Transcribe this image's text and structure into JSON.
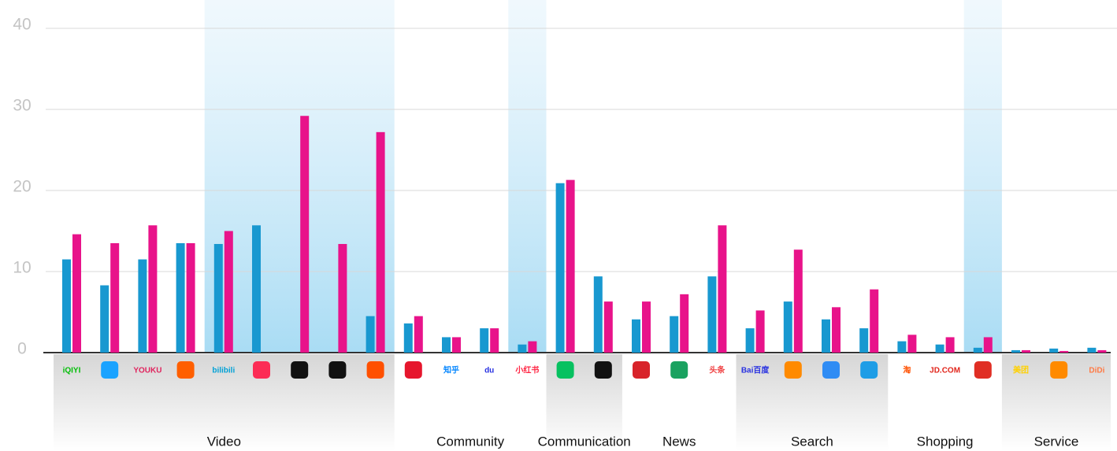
{
  "chart_data": {
    "type": "bar",
    "categories": [
      "iQIYI",
      null,
      "YOUKU",
      null,
      "bilibili",
      null,
      null,
      null,
      null,
      null,
      "知乎",
      "du",
      "小红书",
      null,
      null,
      null,
      null,
      "头条",
      "Bai百度",
      null,
      null,
      null,
      "淘",
      "JD.COM",
      null,
      "美团",
      null,
      "DiDi"
    ],
    "series": [
      {
        "color": "#1898d0",
        "values": [
          11.5,
          8.3,
          11.5,
          13.5,
          13.4,
          15.7,
          null,
          null,
          4.5,
          3.6,
          1.9,
          3,
          1,
          20.9,
          9.4,
          4.1,
          4.5,
          9.4,
          3,
          6.3,
          4.1,
          3,
          1.4,
          1,
          0.6,
          0.3,
          0.5,
          0.6
        ]
      },
      {
        "color": "#e8138a",
        "values": [
          14.6,
          13.5,
          15.7,
          13.5,
          15,
          null,
          29.2,
          13.4,
          27.2,
          4.5,
          1.9,
          3,
          1.4,
          21.3,
          6.3,
          6.3,
          7.2,
          15.7,
          5.2,
          12.7,
          5.6,
          7.8,
          2.2,
          1.9,
          1.9,
          0.3,
          0.2,
          0.3
        ]
      }
    ],
    "groups": [
      "Video",
      "Community",
      "Communication",
      "News",
      "Search",
      "Shopping",
      "Service"
    ],
    "ylim": [
      0,
      40
    ],
    "yticks": [
      0,
      10,
      20,
      30,
      40
    ],
    "grid": true
  }
}
